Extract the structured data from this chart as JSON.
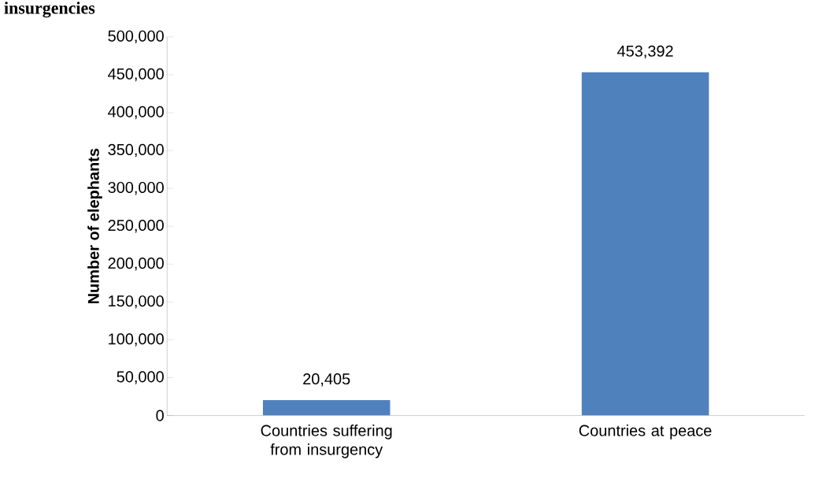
{
  "chart_data": {
    "type": "bar",
    "title": "insurgencies",
    "ylabel": "Number of elephants",
    "categories": [
      "Countries suffering from insurgency",
      "Countries at peace"
    ],
    "values": [
      20405,
      453392
    ],
    "color": "#4f81bd",
    "value_labels": [
      "20,405",
      "453,392"
    ],
    "ylim": [
      0,
      500000
    ],
    "yticks": [
      {
        "value": 0,
        "label": "0"
      },
      {
        "value": 50000,
        "label": "50,000"
      },
      {
        "value": 100000,
        "label": "100,000"
      },
      {
        "value": 150000,
        "label": "150,000"
      },
      {
        "value": 200000,
        "label": "200,000"
      },
      {
        "value": 250000,
        "label": "250,000"
      },
      {
        "value": 300000,
        "label": "300,000"
      },
      {
        "value": 350000,
        "label": "350,000"
      },
      {
        "value": 400000,
        "label": "400,000"
      },
      {
        "value": 450000,
        "label": "450,000"
      },
      {
        "value": 500000,
        "label": "500,000"
      }
    ],
    "grid": false
  }
}
